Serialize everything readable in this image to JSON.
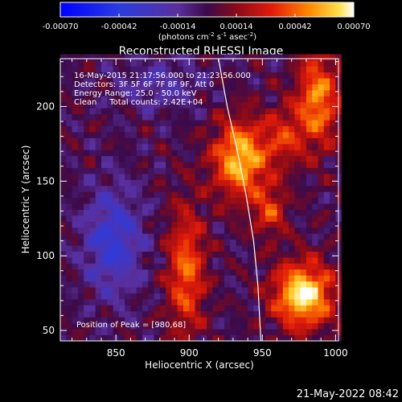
{
  "chart_data": {
    "type": "heatmap",
    "title": "Reconstructed RHESSI Image",
    "xlabel": "Heliocentric X (arcsec)",
    "ylabel": "Heliocentric Y (arcsec)",
    "xlim": [
      812,
      1002
    ],
    "ylim": [
      43,
      232
    ],
    "xticks": [
      850,
      900,
      950,
      1000
    ],
    "yticks": [
      50,
      100,
      150,
      200
    ],
    "colorbar": {
      "ticks": [
        "-0.00070",
        "-0.00042",
        "-0.00014",
        "0.00014",
        "0.00042",
        "0.00070"
      ],
      "min": -0.0007,
      "max": 0.0007,
      "label": "(photons cm",
      "label_sup1": "-2",
      "label_mid": " s",
      "label_sup2": "-1",
      "label_end": " asec",
      "label_sup3": "-2",
      "label_close": ")",
      "colormap": "rhessi-blue-purple-red-yellow-white"
    },
    "annotations": [
      "16-May-2015 21:17:56.000 to 21:23:56.000",
      "Detectors: 3F 5F 6F 7F 8F 9F, Att 0",
      "Energy Range: 25.0 - 50.0 keV",
      "Clean     Total counts: 2.42E+04"
    ],
    "peak_label": "Position of Peak = [980,68]",
    "peak": [
      980,
      68
    ],
    "limb_points": [
      [
        920,
        232
      ],
      [
        926,
        200
      ],
      [
        933,
        170
      ],
      [
        939,
        140
      ],
      [
        944,
        110
      ],
      [
        947,
        80
      ],
      [
        949,
        43
      ]
    ],
    "sources": [
      {
        "x": 978,
        "y": 74,
        "sx": 14,
        "sy": 15,
        "amp": 1.0
      },
      {
        "x": 935,
        "y": 165,
        "sx": 13,
        "sy": 18,
        "amp": 0.85
      },
      {
        "x": 988,
        "y": 205,
        "sx": 10,
        "sy": 22,
        "amp": 0.7
      },
      {
        "x": 898,
        "y": 90,
        "sx": 9,
        "sy": 30,
        "amp": 0.6
      },
      {
        "x": 955,
        "y": 130,
        "sx": 8,
        "sy": 12,
        "amp": 0.45
      },
      {
        "x": 965,
        "y": 180,
        "sx": 10,
        "sy": 14,
        "amp": 0.4
      },
      {
        "x": 848,
        "y": 110,
        "sx": 14,
        "sy": 25,
        "amp": -0.5
      },
      {
        "x": 880,
        "y": 215,
        "sx": 20,
        "sy": 12,
        "amp": -0.25
      }
    ]
  },
  "footer": {
    "timestamp": "21-May-2022 08:42"
  }
}
